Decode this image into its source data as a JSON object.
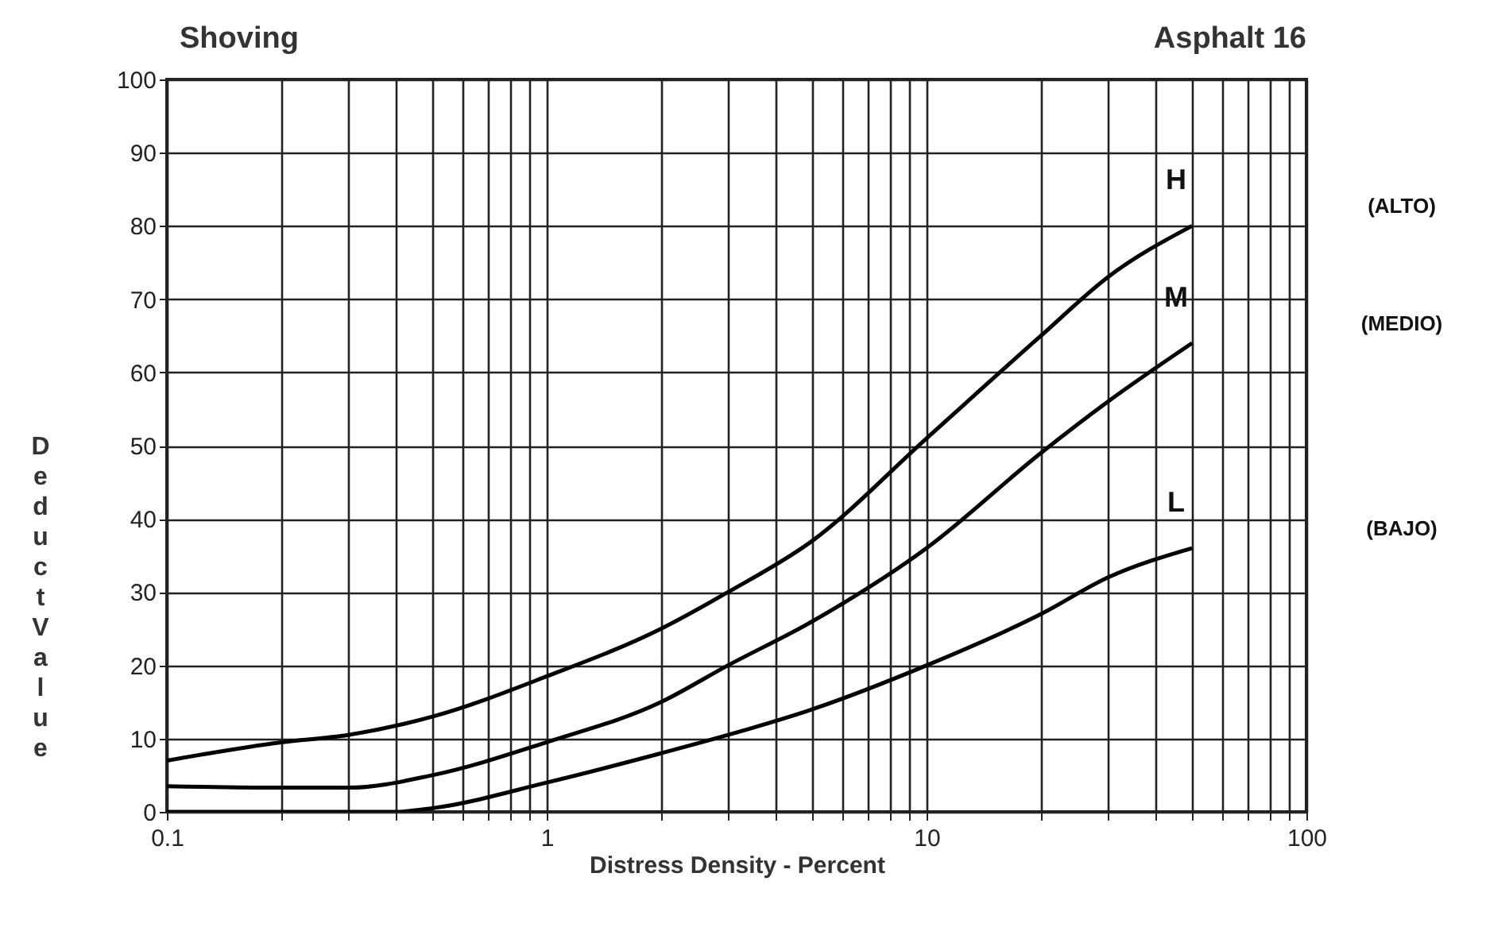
{
  "chart_data": {
    "type": "line",
    "title": "Shoving",
    "subtitle": "Asphalt 16",
    "xlabel": "Distress Density - Percent",
    "ylabel": "Deduct Value",
    "log": "x",
    "grid": true,
    "legend": false,
    "xlim": [
      0.1,
      100
    ],
    "ylim": [
      0,
      100
    ],
    "xticks": [
      0.1,
      {
        "value": 0.2,
        "label": null
      },
      {
        "value": 0.3,
        "label": null
      },
      {
        "value": 0.4,
        "label": null
      },
      {
        "value": 0.5,
        "label": null
      },
      {
        "value": 0.6,
        "label": null
      },
      {
        "value": 0.7,
        "label": null
      },
      {
        "value": 0.8,
        "label": null
      },
      {
        "value": 0.9,
        "label": null
      },
      1,
      {
        "value": 2,
        "label": null
      },
      {
        "value": 3,
        "label": null
      },
      {
        "value": 4,
        "label": null
      },
      {
        "value": 5,
        "label": null
      },
      {
        "value": 6,
        "label": null
      },
      {
        "value": 7,
        "label": null
      },
      {
        "value": 8,
        "label": null
      },
      {
        "value": 9,
        "label": null
      },
      10,
      {
        "value": 20,
        "label": null
      },
      {
        "value": 30,
        "label": null
      },
      {
        "value": 40,
        "label": null
      },
      {
        "value": 50,
        "label": null
      },
      {
        "value": 60,
        "label": null
      },
      {
        "value": 70,
        "label": null
      },
      {
        "value": 80,
        "label": null
      },
      {
        "value": 90,
        "label": null
      },
      100
    ],
    "yticks": [
      0,
      10,
      20,
      30,
      40,
      50,
      60,
      70,
      80,
      90,
      100
    ],
    "x": [
      0.1,
      0.2,
      0.3,
      0.5,
      1,
      2,
      3,
      5,
      10,
      20,
      30,
      50
    ],
    "series": [
      {
        "name": "H",
        "color": "#000000",
        "values": [
          7,
          9.5,
          10.5,
          13,
          18.5,
          25,
          30,
          37,
          51,
          65,
          73,
          80
        ]
      },
      {
        "name": "M",
        "color": "#000000",
        "values": [
          3.5,
          3.3,
          3.3,
          5,
          9.5,
          15,
          20,
          26,
          36,
          49,
          56,
          64
        ]
      },
      {
        "name": "L",
        "color": "#000000",
        "x": [
          0.1,
          0.2,
          0.4,
          0.5,
          1,
          2,
          3,
          5,
          10,
          20,
          30,
          50
        ],
        "values": [
          0,
          0,
          0,
          0.5,
          4,
          8,
          10.5,
          14,
          20,
          27,
          32,
          36
        ]
      }
    ],
    "annotations": [
      "(ALTO)",
      "(MEDIO)",
      "(BAJO)"
    ]
  }
}
